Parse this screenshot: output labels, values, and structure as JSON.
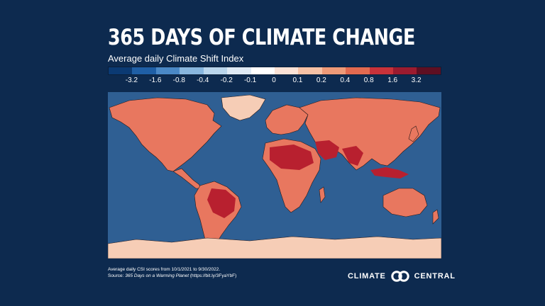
{
  "title": "365 DAYS OF CLIMATE CHANGE",
  "subtitle": "Average daily Climate Shift Index",
  "legend": {
    "ticks": [
      "-3.2",
      "-1.6",
      "-0.8",
      "-0.4",
      "-0.2",
      "-0.1",
      "0",
      "0.1",
      "0.2",
      "0.4",
      "0.8",
      "1.6",
      "3.2"
    ],
    "colors": [
      "#0b3a73",
      "#1f5fa6",
      "#4a88c6",
      "#88b6de",
      "#b9d5ec",
      "#dfeaf5",
      "#ffffff",
      "#fbe2d6",
      "#f7c2a6",
      "#ee9a78",
      "#e26a50",
      "#c8323a",
      "#9b1b2f",
      "#5e0f22"
    ]
  },
  "map": {
    "ocean_color": "#2f5f93",
    "land_color": "#e8775f",
    "hot_color": "#b8202f",
    "ice_color": "#f6cdb6"
  },
  "footnote": {
    "line1": "Average daily CSI scores from 10/1/2021 to 9/30/2022.",
    "line2_prefix": "Source: ",
    "line2_source": "365 Days on a Warming Planet",
    "line2_link": " (https://bit.ly/3FyaYbF)"
  },
  "brand": {
    "name_left": "CLIMATE",
    "name_right": "CENTRAL"
  }
}
